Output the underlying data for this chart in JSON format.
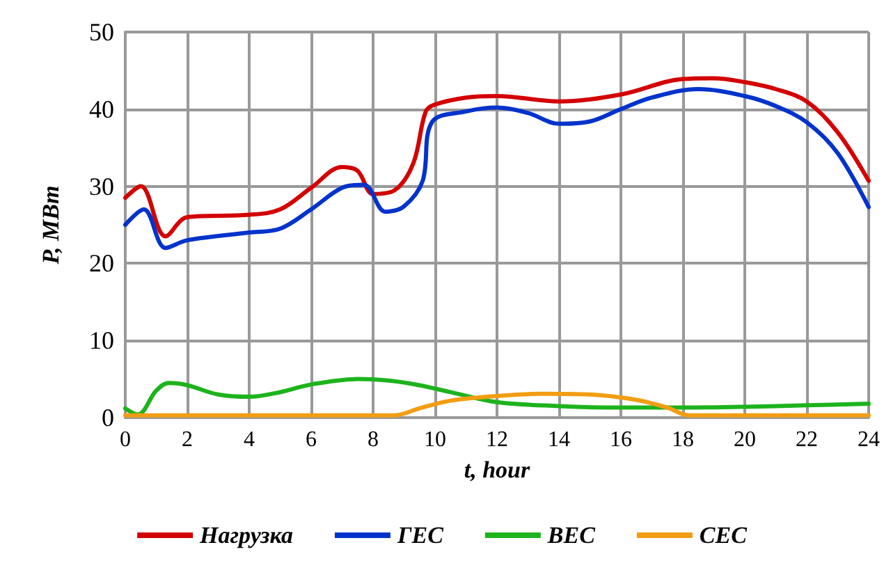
{
  "chart_data": {
    "type": "line",
    "xlabel": "t, hour",
    "ylabel": "P, MBm",
    "xlim": [
      0,
      24
    ],
    "xticks": [
      0,
      2,
      4,
      6,
      8,
      10,
      12,
      14,
      16,
      18,
      20,
      22,
      24
    ],
    "ylim": [
      0,
      50
    ],
    "yticks": [
      0,
      10,
      20,
      30,
      40,
      50
    ],
    "grid": true,
    "legend": "bottom",
    "marker": "none",
    "line_style": "solid",
    "series": [
      {
        "name": "Нагрузка",
        "color": "#d40000",
        "x": [
          0,
          0.5,
          1.3,
          2,
          4,
          5,
          6,
          7,
          7.5,
          8,
          8.7,
          9.3,
          9.7,
          10,
          11,
          12,
          14,
          16,
          18,
          19,
          20,
          21,
          22,
          23,
          24
        ],
        "values": [
          28.5,
          30,
          23.5,
          26,
          26.3,
          27,
          29.8,
          32.5,
          32,
          29,
          29.5,
          33,
          39.7,
          40.6,
          41.5,
          41.7,
          41,
          41.9,
          43.9,
          44,
          43.5,
          42.6,
          41,
          37,
          30.7
        ]
      },
      {
        "name": "ГЕС",
        "color": "#0033cc",
        "x": [
          0,
          0.6,
          1.3,
          2,
          4,
          5,
          6,
          7,
          7.7,
          8.4,
          9,
          9.6,
          9.9,
          11,
          12,
          13,
          14,
          15,
          16,
          17,
          18.5,
          20,
          21,
          22,
          23,
          24
        ],
        "values": [
          25,
          27,
          22,
          23,
          24,
          24.5,
          27,
          29.8,
          30.2,
          26.7,
          27.4,
          30.7,
          38.3,
          39.7,
          40.2,
          39.5,
          38.1,
          38.4,
          40,
          41.5,
          42.6,
          41.7,
          40.4,
          38.3,
          34.3,
          27.3
        ]
      },
      {
        "name": "ВЕС",
        "color": "#1db31d",
        "x": [
          0,
          0.4,
          1,
          1.4,
          2,
          3,
          4,
          5,
          6,
          7.5,
          8.5,
          9.5,
          10.5,
          12,
          14,
          16,
          18,
          20,
          22,
          24
        ],
        "values": [
          1.2,
          0.4,
          3.5,
          4.5,
          4.2,
          3,
          2.7,
          3.3,
          4.3,
          5,
          4.8,
          4.2,
          3.3,
          2,
          1.5,
          1.3,
          1.3,
          1.4,
          1.6,
          1.8
        ]
      },
      {
        "name": "СЕС",
        "color": "#f29d12",
        "x": [
          0,
          4,
          8.7,
          9.5,
          10.5,
          12,
          13.5,
          15,
          16.5,
          17.5,
          18.2,
          21,
          24
        ],
        "values": [
          0.3,
          0.3,
          0.3,
          1.2,
          2.2,
          2.8,
          3.1,
          3,
          2.3,
          1.3,
          0.3,
          0.3,
          0.3
        ]
      }
    ]
  }
}
